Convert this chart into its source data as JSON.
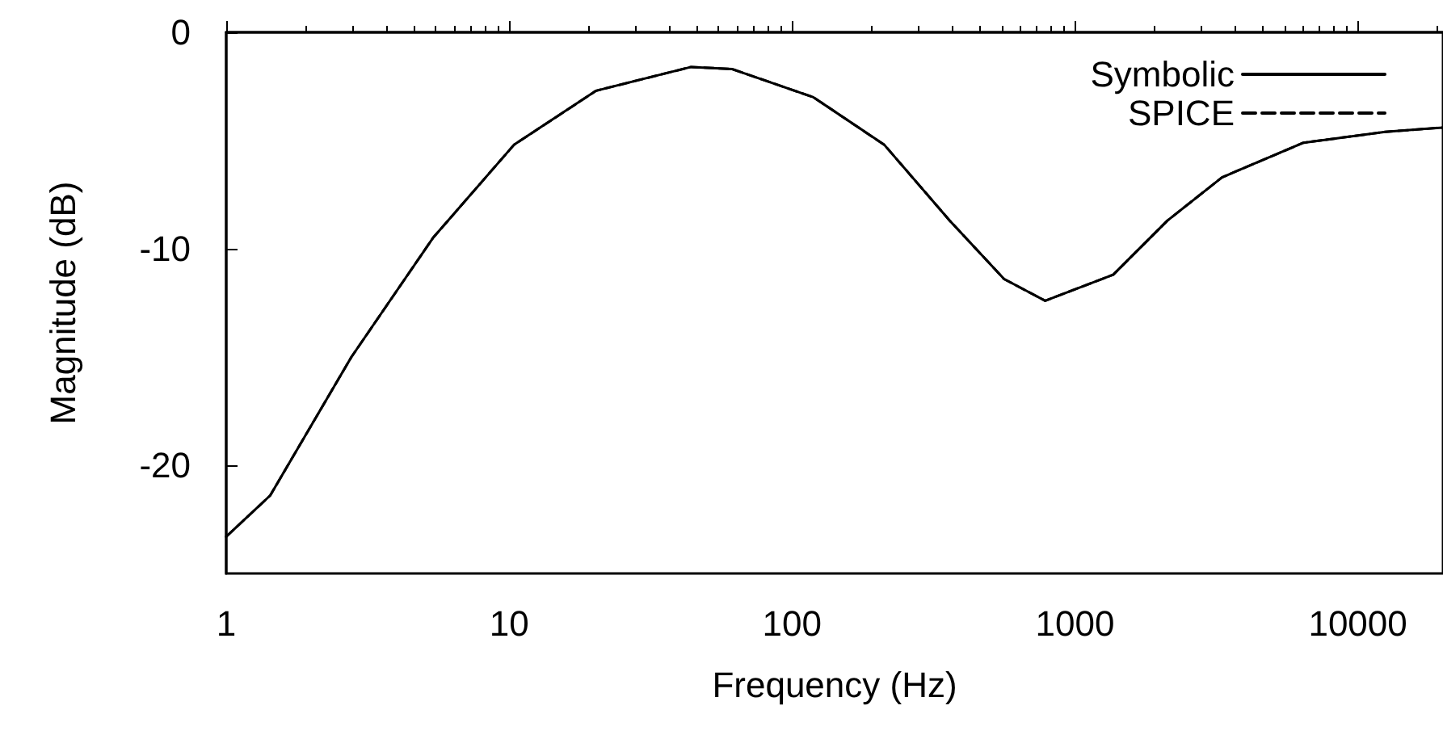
{
  "chart_data": {
    "type": "line",
    "xlabel": "Frequency (Hz)",
    "ylabel": "Magnitude (dB)",
    "log": "x",
    "x": [
      1,
      1.43,
      2.77,
      5.38,
      10.4,
      20.3,
      44,
      61.5,
      119,
      212,
      361,
      562,
      785,
      1365,
      2123,
      3311,
      6427,
      12500,
      20000
    ],
    "xlim": [
      1,
      20000
    ],
    "xticks": [
      1,
      10,
      100,
      1000,
      10000
    ],
    "ylim": [
      -25,
      0
    ],
    "yticks": [
      -20,
      -10,
      0
    ],
    "grid": false,
    "legend": "top right",
    "marker": "none",
    "series": [
      {
        "name": "Symbolic",
        "color": "#000000",
        "line_style": "solid",
        "values": [
          -23.3,
          -21.4,
          -15.0,
          -9.5,
          -5.2,
          -2.7,
          -1.6,
          -1.7,
          -3.0,
          -5.2,
          -8.7,
          -11.4,
          -12.4,
          -11.2,
          -8.7,
          -6.7,
          -5.1,
          -4.6,
          -4.4
        ]
      },
      {
        "name": "SPICE",
        "color": "#000000",
        "line_style": "dashed",
        "values": [
          -23.3,
          -21.4,
          -15.0,
          -9.5,
          -5.2,
          -2.7,
          -1.6,
          -1.7,
          -3.0,
          -5.2,
          -8.7,
          -11.4,
          -12.4,
          -11.2,
          -8.7,
          -6.7,
          -5.1,
          -4.6,
          -4.4
        ]
      }
    ]
  }
}
